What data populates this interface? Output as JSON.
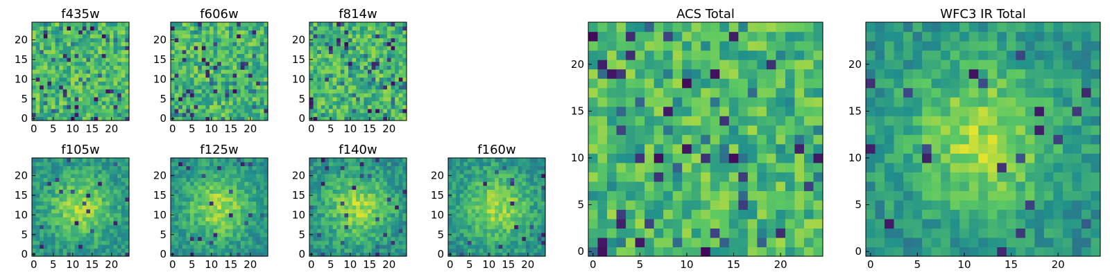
{
  "chart_data": [
    {
      "type": "heatmap",
      "title": "f435w",
      "grid_size": 25,
      "x_ticks": [
        0,
        5,
        10,
        15,
        20
      ],
      "y_ticks": [
        0,
        5,
        10,
        15,
        20
      ],
      "xlim": [
        0,
        24
      ],
      "ylim": [
        0,
        24
      ],
      "colormap": "viridis",
      "texture": "noise",
      "seed": 11
    },
    {
      "type": "heatmap",
      "title": "f606w",
      "grid_size": 25,
      "x_ticks": [
        0,
        5,
        10,
        15,
        20
      ],
      "y_ticks": [
        0,
        5,
        10,
        15,
        20
      ],
      "xlim": [
        0,
        24
      ],
      "ylim": [
        0,
        24
      ],
      "colormap": "viridis",
      "texture": "noise",
      "seed": 23
    },
    {
      "type": "heatmap",
      "title": "f814w",
      "grid_size": 25,
      "x_ticks": [
        0,
        5,
        10,
        15,
        20
      ],
      "y_ticks": [
        0,
        5,
        10,
        15,
        20
      ],
      "xlim": [
        0,
        24
      ],
      "ylim": [
        0,
        24
      ],
      "colormap": "viridis",
      "texture": "noise",
      "seed": 37
    },
    {
      "type": "heatmap",
      "title": "f105w",
      "grid_size": 25,
      "x_ticks": [
        0,
        5,
        10,
        15,
        20
      ],
      "y_ticks": [
        0,
        5,
        10,
        15,
        20
      ],
      "xlim": [
        0,
        24
      ],
      "ylim": [
        0,
        24
      ],
      "colormap": "viridis",
      "texture": "source",
      "seed": 41
    },
    {
      "type": "heatmap",
      "title": "f125w",
      "grid_size": 25,
      "x_ticks": [
        0,
        5,
        10,
        15,
        20
      ],
      "y_ticks": [
        0,
        5,
        10,
        15,
        20
      ],
      "xlim": [
        0,
        24
      ],
      "ylim": [
        0,
        24
      ],
      "colormap": "viridis",
      "texture": "source",
      "seed": 53
    },
    {
      "type": "heatmap",
      "title": "f140w",
      "grid_size": 25,
      "x_ticks": [
        0,
        5,
        10,
        15,
        20
      ],
      "y_ticks": [
        0,
        5,
        10,
        15,
        20
      ],
      "xlim": [
        0,
        24
      ],
      "ylim": [
        0,
        24
      ],
      "colormap": "viridis",
      "texture": "source",
      "seed": 67
    },
    {
      "type": "heatmap",
      "title": "f160w",
      "grid_size": 25,
      "x_ticks": [
        0,
        5,
        10,
        15,
        20
      ],
      "y_ticks": [
        0,
        5,
        10,
        15,
        20
      ],
      "xlim": [
        0,
        24
      ],
      "ylim": [
        0,
        24
      ],
      "colormap": "viridis",
      "texture": "source",
      "seed": 79
    },
    {
      "type": "heatmap",
      "title": "ACS Total",
      "grid_size": 25,
      "x_ticks": [
        0,
        5,
        10,
        15,
        20
      ],
      "y_ticks": [
        0,
        5,
        10,
        15,
        20
      ],
      "xlim": [
        0,
        24
      ],
      "ylim": [
        0,
        24
      ],
      "colormap": "viridis",
      "texture": "noise",
      "seed": 97
    },
    {
      "type": "heatmap",
      "title": "WFC3 IR Total",
      "grid_size": 25,
      "x_ticks": [
        0,
        5,
        10,
        15,
        20
      ],
      "y_ticks": [
        0,
        5,
        10,
        15,
        20
      ],
      "xlim": [
        0,
        24
      ],
      "ylim": [
        0,
        24
      ],
      "colormap": "viridis",
      "texture": "source",
      "seed": 131
    }
  ]
}
